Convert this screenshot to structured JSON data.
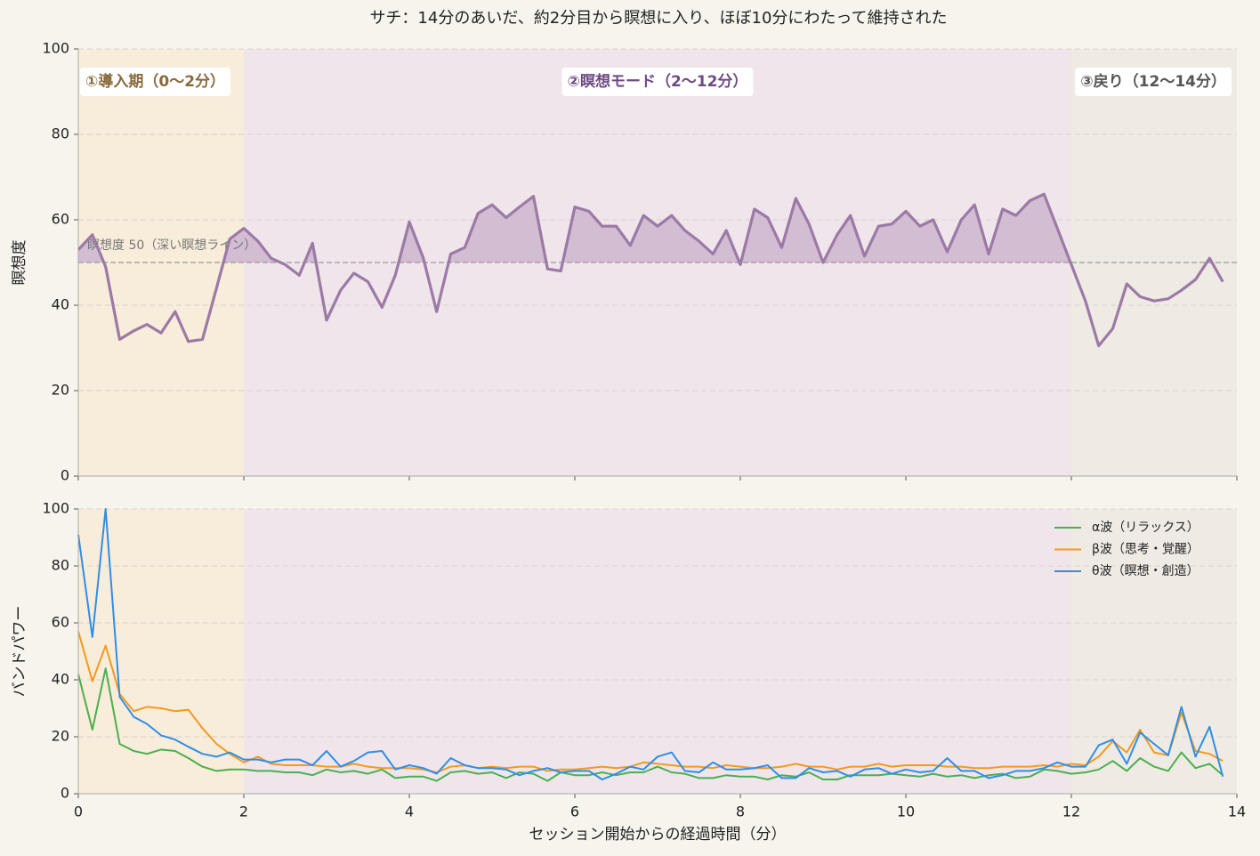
{
  "chart_data": [
    {
      "type": "line",
      "title": "サチ：14分のあいだ、約2分目から瞑想に入り、ほぼ10分にわたって維持された",
      "y_label": "瞑想度",
      "color": "#9b7aa6",
      "fill_color": "#d2bdd3",
      "x": [
        0,
        0.17,
        0.33,
        0.5,
        0.67,
        0.83,
        1,
        1.17,
        1.33,
        1.5,
        1.67,
        1.83,
        2,
        2.17,
        2.33,
        2.5,
        2.67,
        2.83,
        3,
        3.17,
        3.33,
        3.5,
        3.67,
        3.83,
        4,
        4.17,
        4.33,
        4.5,
        4.67,
        4.83,
        5,
        5.17,
        5.33,
        5.5,
        5.67,
        5.83,
        6,
        6.17,
        6.33,
        6.5,
        6.67,
        6.83,
        7,
        7.17,
        7.33,
        7.5,
        7.67,
        7.83,
        8,
        8.17,
        8.33,
        8.5,
        8.67,
        8.83,
        9,
        9.17,
        9.33,
        9.5,
        9.67,
        9.83,
        10,
        10.17,
        10.33,
        10.5,
        10.67,
        10.83,
        11,
        11.17,
        11.33,
        11.5,
        11.67,
        11.83,
        12,
        12.17,
        12.33,
        12.5,
        12.67,
        12.83,
        13,
        13.17,
        13.33,
        13.5,
        13.67,
        13.83
      ],
      "values": [
        53,
        56.5,
        49,
        32,
        34,
        35.5,
        33.5,
        38.5,
        31.5,
        32,
        44,
        55.5,
        58,
        55,
        51,
        49.5,
        47,
        54.5,
        36.5,
        43.5,
        47.5,
        45.5,
        39.5,
        47,
        59.5,
        51,
        38.5,
        52,
        53.5,
        61.5,
        63.5,
        60.5,
        63,
        65.5,
        48.5,
        48,
        63,
        62,
        58.5,
        58.5,
        54,
        61,
        58.5,
        61,
        57.5,
        55,
        52,
        57.5,
        49.5,
        62.5,
        60.5,
        53.5,
        65,
        59,
        50,
        56.5,
        61,
        51.5,
        58.5,
        59,
        62,
        58.5,
        60,
        52.5,
        60,
        63.5,
        52,
        62.5,
        61,
        64.5,
        66,
        58,
        49.5,
        41,
        30.5,
        34.5,
        45,
        42,
        41,
        41.5,
        43.5,
        46,
        51,
        45.5
      ],
      "xlim": [
        0,
        14
      ],
      "xticks": [
        0,
        2,
        4,
        6,
        8,
        10,
        12,
        14
      ],
      "ylim": [
        0,
        100
      ],
      "yticks": [
        0,
        20,
        40,
        60,
        80,
        100
      ],
      "grid": true,
      "reference_line": {
        "value": 50,
        "label": "瞑想度 50（深い瞑想ライン）"
      },
      "phases": [
        {
          "label": "①導入期（0〜2分）",
          "start": 0,
          "end": 2,
          "color": "#f8ecda",
          "text_color": "#8a6a3c"
        },
        {
          "label": "②瞑想モード（2〜12分）",
          "start": 2,
          "end": 12,
          "color": "#efe5eb",
          "text_color": "#6e4a83"
        },
        {
          "label": "③戻り（12〜14分）",
          "start": 12,
          "end": 14,
          "color": "#efebe4",
          "text_color": "#555555"
        }
      ]
    },
    {
      "type": "line",
      "x_label": "セッション開始からの経過時間（分）",
      "y_label": "バンドパワー",
      "x": [
        0,
        0.17,
        0.33,
        0.5,
        0.67,
        0.83,
        1,
        1.17,
        1.33,
        1.5,
        1.67,
        1.83,
        2,
        2.17,
        2.33,
        2.5,
        2.67,
        2.83,
        3,
        3.17,
        3.33,
        3.5,
        3.67,
        3.83,
        4,
        4.17,
        4.33,
        4.5,
        4.67,
        4.83,
        5,
        5.17,
        5.33,
        5.5,
        5.67,
        5.83,
        6,
        6.17,
        6.33,
        6.5,
        6.67,
        6.83,
        7,
        7.17,
        7.33,
        7.5,
        7.67,
        7.83,
        8,
        8.17,
        8.33,
        8.5,
        8.67,
        8.83,
        9,
        9.17,
        9.33,
        9.5,
        9.67,
        9.83,
        10,
        10.17,
        10.33,
        10.5,
        10.67,
        10.83,
        11,
        11.17,
        11.33,
        11.5,
        11.67,
        11.83,
        12,
        12.17,
        12.33,
        12.5,
        12.67,
        12.83,
        13,
        13.17,
        13.33,
        13.5,
        13.67,
        13.83
      ],
      "series": [
        {
          "name": "α波（リラックス）",
          "color": "#4caf50",
          "values": [
            42,
            22.5,
            44,
            17.5,
            15,
            14,
            15.5,
            15,
            12.5,
            9.5,
            8,
            8.5,
            8.5,
            8,
            8,
            7.5,
            7.5,
            6.5,
            8.5,
            7.5,
            8,
            7,
            8.5,
            5.5,
            6,
            6,
            4.5,
            7.5,
            8,
            7,
            7.5,
            5.5,
            7.5,
            7,
            4.5,
            7.5,
            6.5,
            6.5,
            7.5,
            6.5,
            7.5,
            7.5,
            9.5,
            7.5,
            7,
            5.5,
            5.5,
            6.5,
            6,
            6,
            5,
            6.5,
            6,
            7.5,
            5,
            5,
            6.5,
            6.5,
            6.5,
            7,
            6.5,
            6,
            7,
            6,
            6.5,
            5.5,
            6.5,
            7,
            5.5,
            6,
            8.5,
            8,
            7,
            7.5,
            8.5,
            11.5,
            8,
            12.5,
            9.5,
            8,
            14.5,
            9,
            10.5,
            6.5
          ]
        },
        {
          "name": "β波（思考・覚醒）",
          "color": "#f39a1e",
          "values": [
            57,
            39.5,
            52,
            35,
            29,
            30.5,
            30,
            29,
            29.5,
            23,
            17.5,
            14,
            11,
            13,
            10.5,
            10,
            10,
            10,
            9.5,
            9.5,
            10.5,
            9.5,
            9,
            9,
            9,
            8.5,
            7.5,
            9.5,
            10,
            9,
            9.5,
            9,
            9.5,
            9.5,
            8,
            8.5,
            8.5,
            9,
            9.5,
            9,
            9.5,
            11,
            10.5,
            10,
            9.5,
            9.5,
            9,
            10,
            9.5,
            9,
            9,
            9.5,
            10.5,
            9.5,
            9.5,
            8.5,
            9.5,
            9.5,
            10.5,
            9.5,
            10,
            10,
            10,
            9.5,
            9.5,
            9,
            9,
            9.5,
            9.5,
            9.5,
            10,
            9.5,
            10.5,
            10,
            13,
            18.5,
            14.5,
            22.5,
            14.5,
            13.5,
            28.5,
            15,
            14,
            11.5
          ]
        },
        {
          "name": "θ波（瞑想・創造）",
          "color": "#2e8fe6",
          "values": [
            91,
            55,
            100,
            34,
            27,
            24.5,
            20.5,
            19,
            16.5,
            14,
            13,
            14.5,
            12,
            12,
            11,
            12,
            12,
            10,
            15,
            9.5,
            11.5,
            14.5,
            15,
            8.5,
            10,
            9,
            7,
            12.5,
            10,
            9,
            9,
            8.5,
            6.5,
            8,
            9,
            7.5,
            8,
            8,
            5,
            7,
            9.5,
            8.5,
            13,
            14.5,
            8,
            7.5,
            11,
            8.5,
            8.5,
            9,
            10,
            5.5,
            5.5,
            9,
            7.5,
            8,
            6,
            8.5,
            9,
            7,
            8.5,
            7.5,
            8,
            12.5,
            8,
            8,
            5.5,
            6.5,
            8,
            8,
            9,
            11,
            9.5,
            9.5,
            17,
            19,
            10.5,
            21.5,
            17.5,
            13.5,
            30.5,
            13,
            23.5,
            6
          ]
        }
      ],
      "xlim": [
        0,
        14
      ],
      "xticks": [
        0,
        2,
        4,
        6,
        8,
        10,
        12,
        14
      ],
      "ylim": [
        0,
        100
      ],
      "yticks": [
        0,
        20,
        40,
        60,
        80,
        100
      ],
      "grid": true,
      "legend": "upper right",
      "phases": [
        {
          "start": 0,
          "end": 2,
          "color": "#f8ecda"
        },
        {
          "start": 2,
          "end": 12,
          "color": "#efe5eb"
        },
        {
          "start": 12,
          "end": 14,
          "color": "#efebe4"
        }
      ]
    }
  ]
}
